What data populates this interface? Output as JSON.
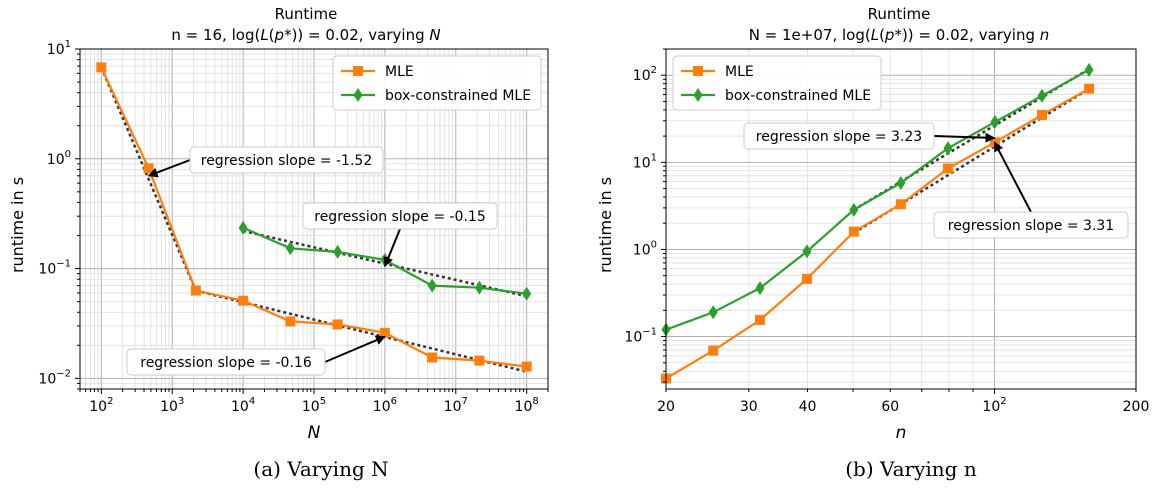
{
  "chart_data": [
    {
      "type": "line",
      "title": "Runtime",
      "subtitle": "n = 16, log(L(p*)) = 0.02, varying N",
      "xlabel": "N",
      "ylabel": "runtime in s",
      "xscale": "log",
      "yscale": "log",
      "xlim": [
        50,
        200000000
      ],
      "ylim": [
        0.008,
        10
      ],
      "xticks": [
        {
          "value": 100,
          "base": "10",
          "exp": "2"
        },
        {
          "value": 1000,
          "base": "10",
          "exp": "3"
        },
        {
          "value": 10000,
          "base": "10",
          "exp": "4"
        },
        {
          "value": 100000,
          "base": "10",
          "exp": "5"
        },
        {
          "value": 1000000,
          "base": "10",
          "exp": "6"
        },
        {
          "value": 10000000,
          "base": "10",
          "exp": "7"
        },
        {
          "value": 100000000,
          "base": "10",
          "exp": "8"
        }
      ],
      "yticks": [
        {
          "value": 0.01,
          "base": "10",
          "exp": "−2"
        },
        {
          "value": 0.1,
          "base": "10",
          "exp": "−1"
        },
        {
          "value": 1,
          "base": "10",
          "exp": "0"
        },
        {
          "value": 10,
          "base": "10",
          "exp": "1"
        }
      ],
      "grid": true,
      "legend": "top-right",
      "series": [
        {
          "name": "MLE",
          "color": "#ff7f0e",
          "marker": "square",
          "x": [
            100,
            464,
            2154,
            10000,
            46416,
            215443,
            1000000,
            4641589,
            21544347,
            100000000
          ],
          "y": [
            6.8,
            0.82,
            0.063,
            0.051,
            0.033,
            0.031,
            0.026,
            0.0155,
            0.0145,
            0.0128
          ]
        },
        {
          "name": "box-constrained MLE",
          "color": "#2ca02c",
          "marker": "diamond",
          "x": [
            10000,
            46416,
            215443,
            1000000,
            4641589,
            21544347,
            100000000
          ],
          "y": [
            0.235,
            0.153,
            0.142,
            0.12,
            0.07,
            0.067,
            0.059
          ]
        }
      ],
      "regression_lines": [
        {
          "color": "#333333",
          "x": [
            100,
            2154
          ],
          "y": [
            6.8,
            0.063
          ]
        },
        {
          "color": "#333333",
          "x": [
            2154,
            100000000
          ],
          "y": [
            0.063,
            0.0115
          ]
        },
        {
          "color": "#333333",
          "x": [
            10000,
            100000000
          ],
          "y": [
            0.22,
            0.056
          ]
        }
      ],
      "annotations": [
        {
          "text": "regression slope = -1.52",
          "point": [
            464,
            0.7
          ]
        },
        {
          "text": "regression slope = -0.15",
          "point": [
            1000000,
            0.105
          ]
        },
        {
          "text": "regression slope = -0.16",
          "point": [
            1000000,
            0.024
          ]
        }
      ]
    },
    {
      "type": "line",
      "title": "Runtime",
      "subtitle": "N = 1e+07, log(L(p*)) = 0.02, varying n",
      "xlabel": "n",
      "ylabel": "runtime in s",
      "xscale": "log",
      "yscale": "log",
      "xlim": [
        20,
        200
      ],
      "ylim": [
        0.025,
        200
      ],
      "xticks": [
        {
          "value": 20,
          "base": "20",
          "exp": ""
        },
        {
          "value": 30,
          "base": "30",
          "exp": ""
        },
        {
          "value": 40,
          "base": "40",
          "exp": ""
        },
        {
          "value": 60,
          "base": "60",
          "exp": ""
        },
        {
          "value": 100,
          "base": "10",
          "exp": "2"
        },
        {
          "value": 200,
          "base": "200",
          "exp": ""
        }
      ],
      "yticks": [
        {
          "value": 0.1,
          "base": "10",
          "exp": "−1"
        },
        {
          "value": 1,
          "base": "10",
          "exp": "0"
        },
        {
          "value": 10,
          "base": "10",
          "exp": "1"
        },
        {
          "value": 100,
          "base": "10",
          "exp": "2"
        }
      ],
      "grid": true,
      "legend": "top-left",
      "series": [
        {
          "name": "MLE",
          "color": "#ff7f0e",
          "marker": "square",
          "x": [
            20,
            25.2,
            31.7,
            39.9,
            50.2,
            63.2,
            79.6,
            100.2,
            126.2,
            158.9
          ],
          "y": [
            0.033,
            0.069,
            0.155,
            0.46,
            1.6,
            3.3,
            8.5,
            17,
            35,
            70
          ]
        },
        {
          "name": "box-constrained MLE",
          "color": "#2ca02c",
          "marker": "diamond",
          "x": [
            20,
            25.2,
            31.7,
            39.9,
            50.2,
            63.2,
            79.6,
            100.2,
            126.2,
            158.9
          ],
          "y": [
            0.12,
            0.19,
            0.36,
            0.95,
            2.85,
            5.8,
            14.5,
            29,
            58,
            115
          ]
        }
      ],
      "regression_lines": [
        {
          "color": "#333333",
          "x": [
            50.2,
            158.9
          ],
          "y": [
            1.55,
            70
          ]
        },
        {
          "color": "#333333",
          "x": [
            50.2,
            158.9
          ],
          "y": [
            2.85,
            118
          ]
        }
      ],
      "annotations": [
        {
          "text": "regression slope = 3.23",
          "point": [
            100,
            19
          ]
        },
        {
          "text": "regression slope = 3.31",
          "point": [
            100,
            17
          ]
        }
      ]
    }
  ],
  "captions": [
    "(a) Varying N",
    "(b) Varying n"
  ]
}
